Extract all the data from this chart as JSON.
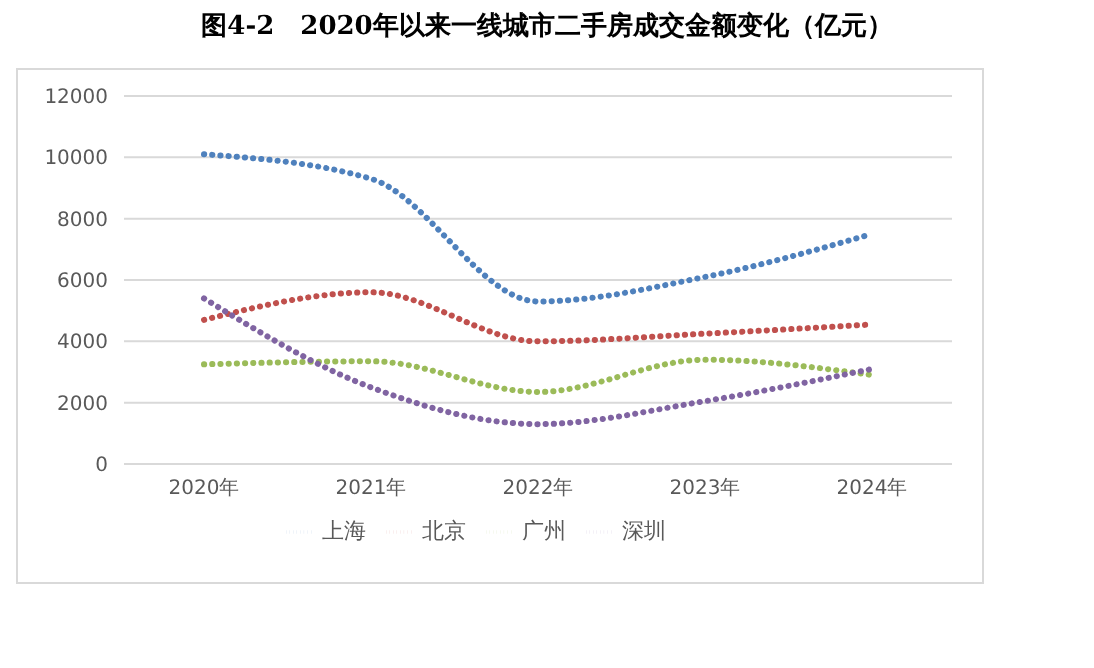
{
  "chart_data": {
    "type": "line",
    "title": "图4-2　2020年以来一线城市二手房成交金额变化（亿元）",
    "categories": [
      "2020年",
      "2021年",
      "2022年",
      "2023年",
      "2024年"
    ],
    "series": [
      {
        "name": "上海",
        "color": "#4f81bd",
        "values": [
          10100,
          9300,
          5300,
          6100,
          7500
        ]
      },
      {
        "name": "北京",
        "color": "#c0504d",
        "values": [
          4700,
          5600,
          4000,
          4250,
          4550
        ]
      },
      {
        "name": "广州",
        "color": "#9bbb59",
        "values": [
          3250,
          3350,
          2350,
          3400,
          2900
        ]
      },
      {
        "name": "深圳",
        "color": "#8064a2",
        "values": [
          5400,
          2500,
          1300,
          2050,
          3100
        ]
      }
    ],
    "ylim": [
      0,
      12000
    ],
    "yticks": [
      0,
      2000,
      4000,
      6000,
      8000,
      10000,
      12000
    ],
    "grid": "y",
    "legend": "bottom",
    "line_style": "dotted",
    "marker": "none"
  }
}
